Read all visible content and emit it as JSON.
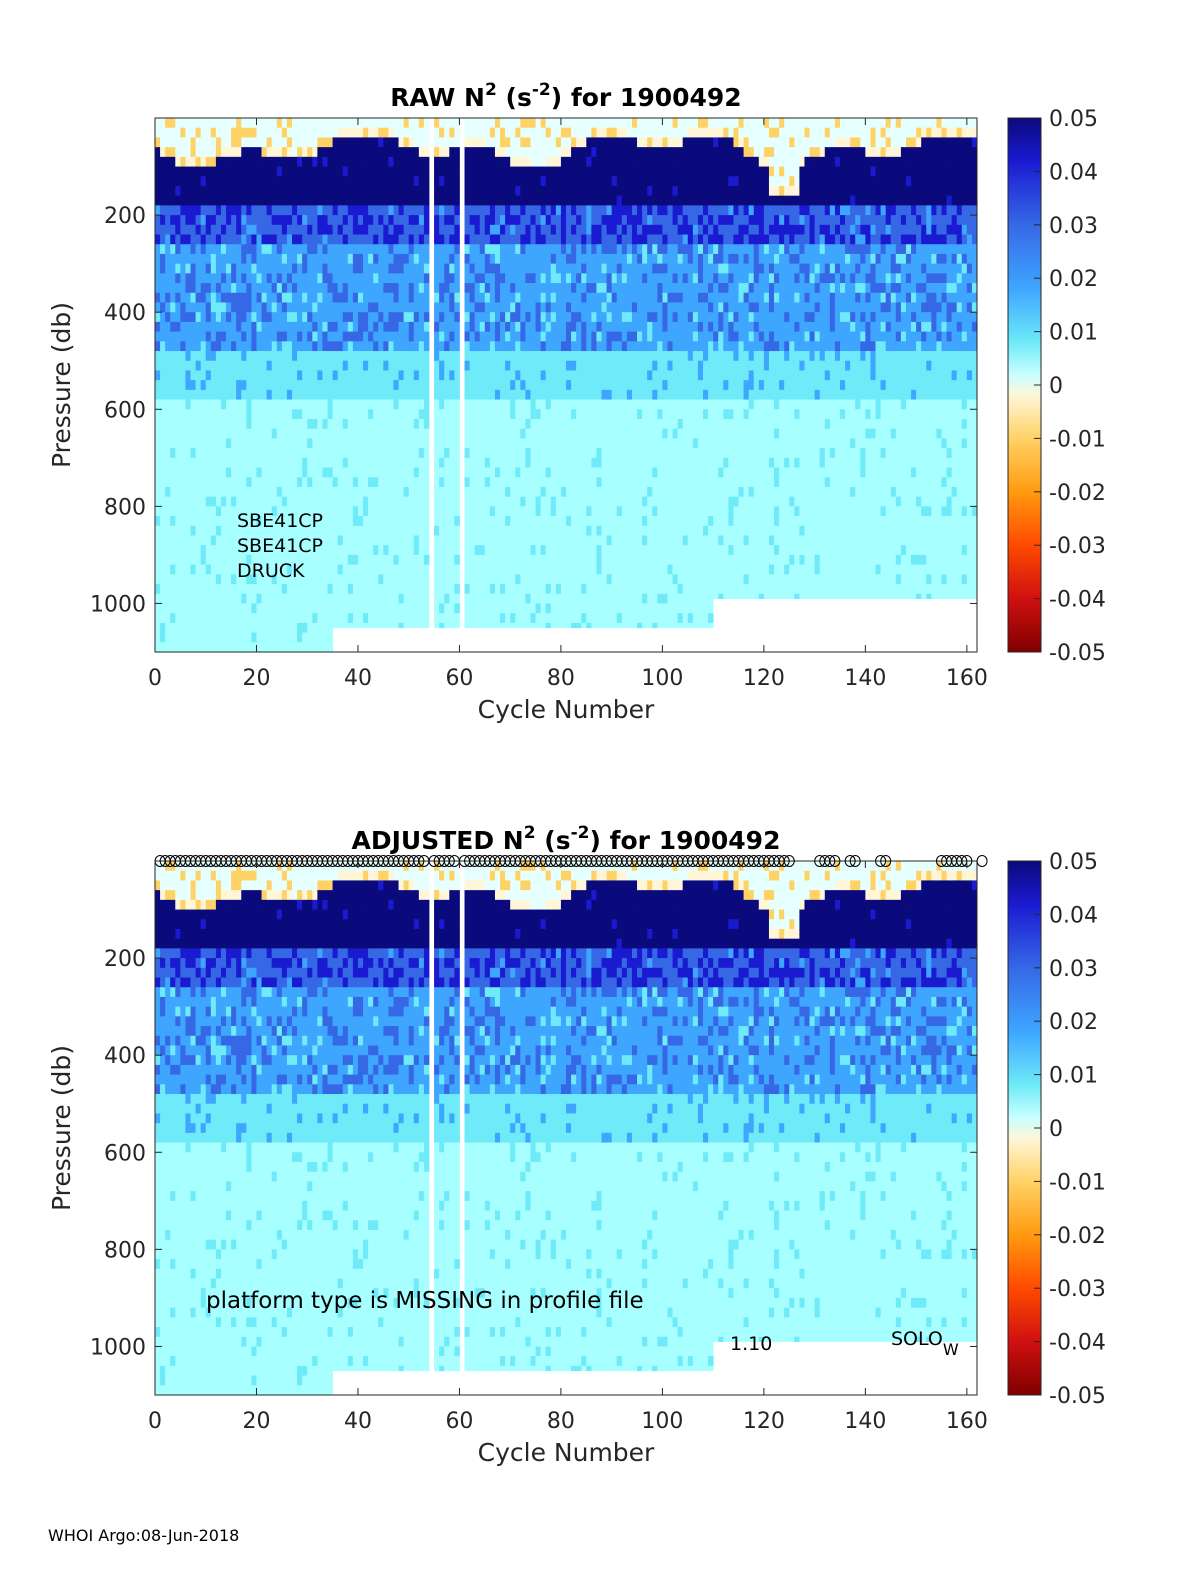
{
  "footer": "WHOI Argo:08-Jun-2018",
  "colors": {
    "cmap": [
      "#7f0000",
      "#d01010",
      "#ff4a00",
      "#ff9a10",
      "#ffd266",
      "#fff6d8",
      "#e6ffff",
      "#a8ffff",
      "#6eeaf8",
      "#3ea6ff",
      "#3668e6",
      "#1a1ad0",
      "#0a0a7c"
    ]
  },
  "chart_data": [
    {
      "type": "heatmap",
      "title_main": "RAW N",
      "title_sup1": "2",
      "title_mid": " (s",
      "title_sup2": "-2",
      "title_end": ") for 1900492",
      "xlabel": "Cycle Number",
      "ylabel": "Pressure (db)",
      "xlim": [
        0,
        162
      ],
      "ylim": [
        1100,
        0
      ],
      "xticks": [
        "0",
        "20",
        "40",
        "60",
        "80",
        "100",
        "120",
        "140",
        "160"
      ],
      "yticks": [
        "200",
        "400",
        "600",
        "800",
        "1000"
      ],
      "colorbar_ticks": [
        "0.05",
        "0.04",
        "0.03",
        "0.02",
        "0.01",
        "0",
        "-0.01",
        "-0.02",
        "-0.03",
        "-0.04",
        "-0.05"
      ],
      "clim": [
        -0.05,
        0.05
      ],
      "annotations": [
        "SBE41CP",
        "SBE41CP",
        "DRUCK"
      ],
      "gap_cycles": [
        54,
        60
      ],
      "qc_markers": false
    },
    {
      "type": "heatmap",
      "title_main": "ADJUSTED N",
      "title_sup1": "2",
      "title_mid": " (s",
      "title_sup2": "-2",
      "title_end": ") for 1900492",
      "xlabel": "Cycle Number",
      "ylabel": "Pressure (db)",
      "xlim": [
        0,
        162
      ],
      "ylim": [
        1100,
        0
      ],
      "xticks": [
        "0",
        "20",
        "40",
        "60",
        "80",
        "100",
        "120",
        "140",
        "160"
      ],
      "yticks": [
        "200",
        "400",
        "600",
        "800",
        "1000"
      ],
      "colorbar_ticks": [
        "0.05",
        "0.04",
        "0.03",
        "0.02",
        "0.01",
        "0",
        "-0.01",
        "-0.02",
        "-0.03",
        "-0.04",
        "-0.05"
      ],
      "clim": [
        -0.05,
        0.05
      ],
      "annotations": [
        "platform type is MISSING in profile file",
        "1.10",
        "SOLO",
        "W"
      ],
      "gap_cycles": [
        54,
        60
      ],
      "qc_markers": true,
      "qc_marker_cycles": [
        1,
        2,
        3,
        4,
        5,
        6,
        7,
        8,
        9,
        10,
        11,
        12,
        13,
        14,
        15,
        16,
        17,
        18,
        19,
        20,
        21,
        22,
        23,
        24,
        25,
        26,
        27,
        28,
        29,
        30,
        31,
        32,
        33,
        34,
        35,
        36,
        37,
        38,
        39,
        40,
        41,
        42,
        43,
        44,
        45,
        46,
        47,
        48,
        49,
        50,
        51,
        52,
        53,
        55,
        56,
        57,
        58,
        59,
        61,
        62,
        63,
        64,
        65,
        66,
        67,
        68,
        69,
        70,
        71,
        72,
        73,
        74,
        75,
        76,
        77,
        78,
        79,
        80,
        81,
        82,
        83,
        84,
        85,
        86,
        87,
        88,
        89,
        90,
        91,
        92,
        93,
        94,
        95,
        96,
        97,
        98,
        99,
        100,
        101,
        102,
        103,
        104,
        105,
        106,
        107,
        108,
        109,
        110,
        111,
        112,
        113,
        114,
        115,
        116,
        117,
        118,
        119,
        120,
        121,
        122,
        123,
        124,
        125,
        131,
        132,
        133,
        134,
        137,
        138,
        143,
        144,
        155,
        156,
        157,
        158,
        159,
        160,
        163
      ]
    }
  ]
}
